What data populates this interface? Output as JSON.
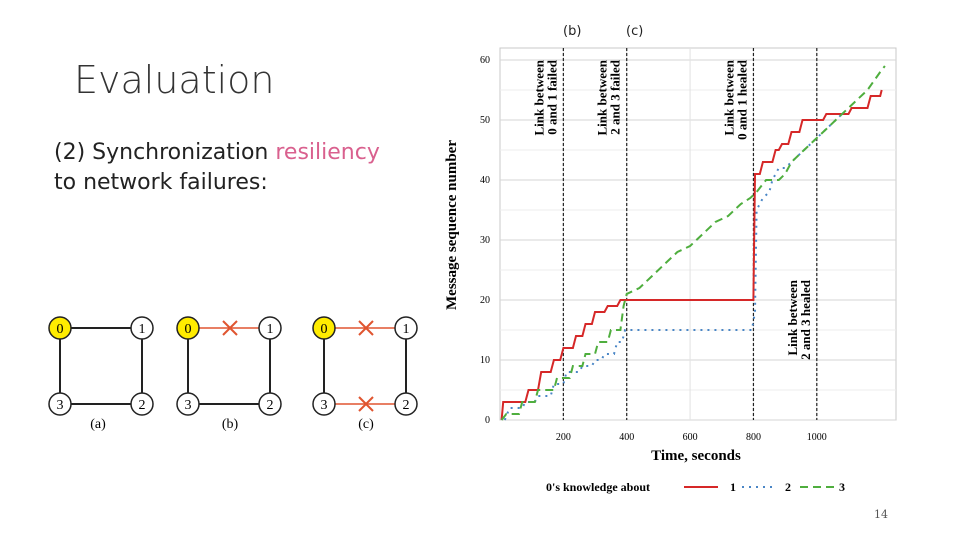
{
  "slide": {
    "title": "Evaluation",
    "subtitle_prefix": "(2) Synchronization ",
    "subtitle_highlight": "resiliency",
    "subtitle_line2": "to network failures:",
    "marker_b": "(b)",
    "marker_c": "(c)",
    "page_number": "14",
    "highlight_color": "#d9608e"
  },
  "graphs": {
    "captions": [
      "(a)",
      "(b)",
      "(c)"
    ],
    "nodes": [
      "0",
      "1",
      "2",
      "3"
    ],
    "colors": {
      "node0": "#ffec00",
      "failed_link": "#e05530"
    }
  },
  "chart_data": {
    "type": "line",
    "xlabel": "Time, seconds",
    "ylabel": "Message sequence number",
    "xlim": [
      0,
      1250
    ],
    "ylim": [
      0,
      62
    ],
    "x_ticks": [
      "200",
      "400",
      "600",
      "800",
      "1000"
    ],
    "y_ticks": [
      "0",
      "10",
      "20",
      "30",
      "40",
      "50",
      "60"
    ],
    "annotations": [
      {
        "x": 200,
        "line1": "Link between",
        "line2": "0 and 1 failed"
      },
      {
        "x": 400,
        "line1": "Link between",
        "line2": "2 and 3 failed"
      },
      {
        "x": 800,
        "line1": "Link between",
        "line2": "0 and 1 healed"
      },
      {
        "x": 1000,
        "line1": "Link between",
        "line2": "2 and 3 healed"
      }
    ],
    "legend_title": "0's knowledge about",
    "series": [
      {
        "name": "1",
        "color": "#d62828",
        "points": [
          [
            5,
            0
          ],
          [
            10,
            3
          ],
          [
            80,
            3
          ],
          [
            90,
            5
          ],
          [
            120,
            5
          ],
          [
            130,
            8
          ],
          [
            160,
            8
          ],
          [
            170,
            10
          ],
          [
            190,
            10
          ],
          [
            200,
            12
          ],
          [
            230,
            12
          ],
          [
            240,
            14
          ],
          [
            260,
            14
          ],
          [
            270,
            16
          ],
          [
            290,
            16
          ],
          [
            300,
            18
          ],
          [
            330,
            18
          ],
          [
            340,
            19
          ],
          [
            370,
            19
          ],
          [
            380,
            20
          ],
          [
            800,
            20
          ],
          [
            805,
            41
          ],
          [
            820,
            41
          ],
          [
            830,
            43
          ],
          [
            860,
            43
          ],
          [
            870,
            45
          ],
          [
            880,
            45
          ],
          [
            890,
            46
          ],
          [
            910,
            46
          ],
          [
            920,
            48
          ],
          [
            945,
            48
          ],
          [
            955,
            50
          ],
          [
            1020,
            50
          ],
          [
            1030,
            51
          ],
          [
            1100,
            51
          ],
          [
            1110,
            52
          ],
          [
            1160,
            52
          ],
          [
            1170,
            54
          ],
          [
            1200,
            54
          ],
          [
            1205,
            55
          ]
        ]
      },
      {
        "name": "2",
        "color": "#4a86c6",
        "points": [
          [
            15,
            0
          ],
          [
            30,
            2
          ],
          [
            70,
            2
          ],
          [
            80,
            3
          ],
          [
            110,
            3
          ],
          [
            120,
            4
          ],
          [
            160,
            4
          ],
          [
            170,
            6
          ],
          [
            200,
            6
          ],
          [
            210,
            8
          ],
          [
            250,
            8
          ],
          [
            260,
            9
          ],
          [
            290,
            9
          ],
          [
            300,
            10
          ],
          [
            320,
            10
          ],
          [
            330,
            11
          ],
          [
            360,
            11
          ],
          [
            370,
            13
          ],
          [
            385,
            13
          ],
          [
            395,
            15
          ],
          [
            795,
            15
          ],
          [
            805,
            18
          ],
          [
            810,
            35
          ],
          [
            830,
            37
          ],
          [
            850,
            38
          ],
          [
            860,
            40
          ],
          [
            880,
            42
          ],
          [
            900,
            42
          ],
          [
            920,
            43
          ],
          [
            940,
            44
          ],
          [
            960,
            45
          ],
          [
            980,
            46
          ],
          [
            1000,
            47
          ],
          [
            1040,
            49
          ],
          [
            1080,
            51
          ]
        ]
      },
      {
        "name": "3",
        "color": "#4fae3e",
        "points": [
          [
            5,
            0
          ],
          [
            20,
            1
          ],
          [
            60,
            1
          ],
          [
            70,
            3
          ],
          [
            110,
            3
          ],
          [
            120,
            5
          ],
          [
            170,
            5
          ],
          [
            180,
            7
          ],
          [
            220,
            7
          ],
          [
            230,
            9
          ],
          [
            260,
            9
          ],
          [
            270,
            11
          ],
          [
            300,
            11
          ],
          [
            310,
            13
          ],
          [
            340,
            13
          ],
          [
            350,
            15
          ],
          [
            380,
            15
          ],
          [
            390,
            19
          ],
          [
            395,
            20
          ],
          [
            400,
            21
          ],
          [
            440,
            22
          ],
          [
            480,
            24
          ],
          [
            520,
            26
          ],
          [
            560,
            28
          ],
          [
            600,
            29
          ],
          [
            640,
            31
          ],
          [
            680,
            33
          ],
          [
            720,
            34
          ],
          [
            760,
            36
          ],
          [
            790,
            37
          ],
          [
            810,
            38
          ],
          [
            840,
            40
          ],
          [
            880,
            40
          ],
          [
            900,
            41
          ],
          [
            920,
            43
          ],
          [
            960,
            45
          ],
          [
            1000,
            47
          ],
          [
            1040,
            49
          ],
          [
            1080,
            51
          ],
          [
            1120,
            53
          ],
          [
            1160,
            55
          ],
          [
            1200,
            58
          ],
          [
            1215,
            59
          ]
        ]
      }
    ]
  }
}
